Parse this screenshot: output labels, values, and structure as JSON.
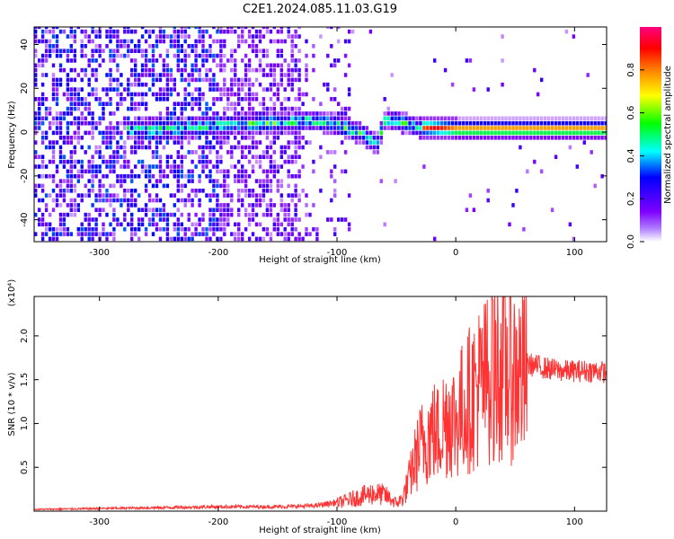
{
  "title": "C2E1.2024.085.11.03.G19",
  "chart_data": [
    {
      "type": "heatmap",
      "xlabel": "Height of straight line (km)",
      "ylabel": "Frequency (Hz)",
      "xlim": [
        -355,
        127
      ],
      "ylim": [
        -50,
        48
      ],
      "xticks": [
        -300,
        -200,
        -100,
        0,
        100
      ],
      "yticks": [
        -40,
        -20,
        0,
        20,
        40
      ],
      "grid": false,
      "ridge": {
        "description_points_x": [
          -260,
          -220,
          -200,
          -150,
          -120,
          -100,
          -80,
          -68,
          -60,
          -45,
          -40,
          -30,
          0,
          50,
          100,
          127
        ],
        "description_points_f": [
          0,
          1,
          2,
          3,
          4,
          2,
          -2,
          -7,
          5,
          3,
          2,
          1,
          0,
          0,
          0,
          0
        ]
      },
      "colorbar": {
        "label": "Normalized spectral amplitude",
        "range": [
          0,
          1
        ],
        "ticks": [
          "0.0",
          "0.2",
          "0.4",
          "0.6",
          "0.8"
        ],
        "colors": [
          "#ffffff",
          "#7f00ff",
          "#0000ff",
          "#00ffff",
          "#00ff00",
          "#ffff00",
          "#ff8000",
          "#ff0000",
          "#ff0080"
        ]
      }
    },
    {
      "type": "line",
      "xlabel": "Height of straight line (km)",
      "ylabel": "SNR (10 * v/v)",
      "multiplier": "(x10⁴)",
      "xlim": [
        -355,
        127
      ],
      "ylim": [
        0,
        2.45
      ],
      "xticks": [
        -300,
        -200,
        -100,
        0,
        100
      ],
      "yticks": [
        "0.5",
        "1.0",
        "1.5",
        "2.0"
      ],
      "series": [
        {
          "color": "#ff3333",
          "x": [
            -355,
            -300,
            -250,
            -200,
            -150,
            -120,
            -100,
            -80,
            -70,
            -60,
            -50,
            -45,
            -40,
            -35,
            -30,
            -25,
            -20,
            -15,
            -10,
            -5,
            0,
            5,
            10,
            15,
            20,
            25,
            30,
            35,
            40,
            50,
            60,
            70,
            80,
            90,
            100,
            110,
            120,
            127
          ],
          "y": [
            0.02,
            0.03,
            0.04,
            0.05,
            0.05,
            0.06,
            0.1,
            0.18,
            0.22,
            0.2,
            0.1,
            0.15,
            0.35,
            0.6,
            0.8,
            0.9,
            1.0,
            0.95,
            1.1,
            1.2,
            1.1,
            1.25,
            1.35,
            1.45,
            1.55,
            1.6,
            1.75,
            1.8,
            1.75,
            1.7,
            1.68,
            1.65,
            1.62,
            1.6,
            1.6,
            1.6,
            1.6,
            1.58
          ]
        }
      ]
    }
  ]
}
